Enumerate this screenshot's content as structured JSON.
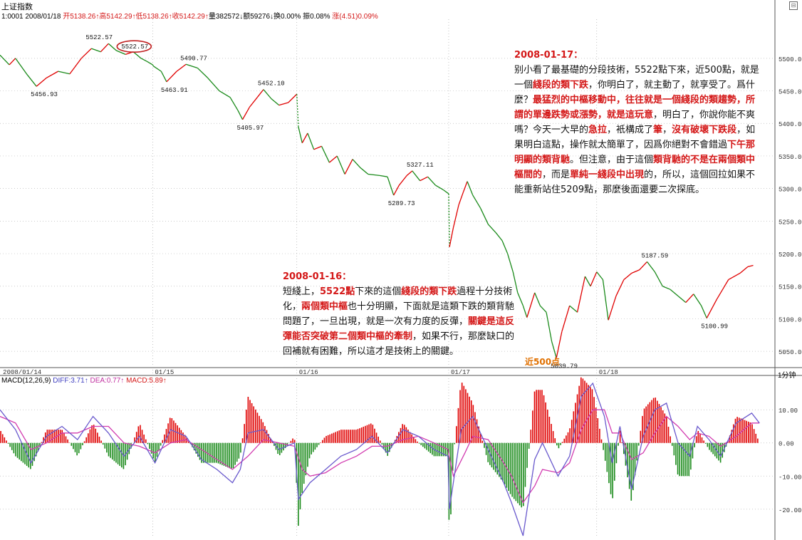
{
  "header": {
    "index_name": "上证指数",
    "code_date": "1:0001 2008/01/18",
    "open": "开5138.26↑",
    "high": "高5142.29↑",
    "low": "低5138.26↑",
    "close": "收5142.29↑",
    "volume": "量382572↓",
    "amount": "额59276↓",
    "turnover": "换0.00%",
    "amplitude": "振0.08%",
    "change": "涨(4.51)0.09%",
    "period": "1分钟"
  },
  "macd_header": {
    "name": "MACD(12,26,9)",
    "diff": "DIFF:3.71↑",
    "dea": "DEA:0.77↑",
    "macd": "MACD:5.89↑"
  },
  "colors": {
    "up": "#e00000",
    "down": "#1a8a1a",
    "diff_line": "#6a5acd",
    "dea_line": "#d23cb0",
    "note_red": "#d41818",
    "axis": "#888888"
  },
  "notes": {
    "n1": {
      "date": "2008-01-17：",
      "segments": [
        {
          "t": " 别小看了最基礎的分段技術，5522點下來，近500點，就是一個",
          "h": false
        },
        {
          "t": "綫段的類下跌",
          "h": true
        },
        {
          "t": "，你明白了，就主動了，就享受了。爲什麼？",
          "h": false
        },
        {
          "t": "最猛烈的中樞移動中，往往就是一個綫段的類趨勢，所謂的單邊跌勢或漲勢，就是這玩意",
          "h": true
        },
        {
          "t": "，明白了，你說你能不爽嗎？今天一大早的",
          "h": false
        },
        {
          "t": "急拉",
          "h": true
        },
        {
          "t": "，衹構成了",
          "h": false
        },
        {
          "t": "筆",
          "h": true
        },
        {
          "t": "，",
          "h": false
        },
        {
          "t": "沒有破壞下跌段",
          "h": true
        },
        {
          "t": "，如果明白這點，操作就太簡單了，因爲你絕對不會錯過",
          "h": false
        },
        {
          "t": "下午那明顯的類背馳",
          "h": true
        },
        {
          "t": "。但注意，由于這個",
          "h": false
        },
        {
          "t": "類背馳的不是在兩個類中樞間的",
          "h": true
        },
        {
          "t": "，而是",
          "h": false
        },
        {
          "t": "單純一綫段中出現",
          "h": true
        },
        {
          "t": "的，所以，這個回拉如果不能重新站住5209點，那麼後面還要二次探底。",
          "h": false
        }
      ]
    },
    "n2": {
      "date": "2008-01-16：",
      "segments": [
        {
          "t": "短綫上，",
          "h": false
        },
        {
          "t": "5522點",
          "h": true
        },
        {
          "t": "下來的這個",
          "h": false
        },
        {
          "t": "綫段的類下跌",
          "h": true
        },
        {
          "t": "過程十分技術化，",
          "h": false
        },
        {
          "t": "兩個類中樞",
          "h": true
        },
        {
          "t": "也十分明顯，下面就是這類下跌的類背馳問題了，一旦出現，就是一次有力度的反彈，",
          "h": false
        },
        {
          "t": "關鍵是這反彈能否突破第二個類中樞的牽制",
          "h": true
        },
        {
          "t": "，如果不行，那麼缺口的回補就有困難，所以這才是技術上的關鍵。",
          "h": false
        }
      ]
    },
    "near500": "近500点"
  },
  "chart_data": [
    {
      "type": "line",
      "name": "上证指数 1分钟",
      "x_labels": [
        "2008/01/14",
        "01/15",
        "01/16",
        "01/17",
        "01/18"
      ],
      "ylim": [
        5025,
        5560
      ],
      "y_ticks": [
        5050,
        5100,
        5150,
        5200,
        5250,
        5300,
        5350,
        5400,
        5450,
        5500
      ],
      "y_tick_labels": [
        "5050.0",
        "5100.0",
        "5150.0",
        "5200.0",
        "5250.0",
        "5300.0",
        "5350.0",
        "5400.0",
        "5450.0",
        "5500.0"
      ],
      "grid": true,
      "day_boundaries": [
        0.197,
        0.383,
        0.579,
        0.77
      ],
      "price_points": [
        [
          0,
          5505
        ],
        [
          0.012,
          5490
        ],
        [
          0.02,
          5500
        ],
        [
          0.035,
          5475
        ],
        [
          0.047,
          5456.93
        ],
        [
          0.06,
          5470
        ],
        [
          0.075,
          5480
        ],
        [
          0.09,
          5476
        ],
        [
          0.105,
          5500
        ],
        [
          0.118,
          5515
        ],
        [
          0.13,
          5510
        ],
        [
          0.14,
          5522.57
        ],
        [
          0.15,
          5512
        ],
        [
          0.162,
          5506
        ],
        [
          0.172,
          5510
        ],
        [
          0.182,
          5500
        ],
        [
          0.19,
          5495
        ],
        [
          0.197,
          5490
        ],
        [
          0.198,
          5488
        ],
        [
          0.208,
          5480
        ],
        [
          0.215,
          5463.91
        ],
        [
          0.228,
          5480
        ],
        [
          0.24,
          5490.77
        ],
        [
          0.255,
          5485
        ],
        [
          0.268,
          5470
        ],
        [
          0.283,
          5450
        ],
        [
          0.297,
          5440
        ],
        [
          0.307,
          5420
        ],
        [
          0.313,
          5405.97
        ],
        [
          0.322,
          5425
        ],
        [
          0.332,
          5440
        ],
        [
          0.34,
          5452.1
        ],
        [
          0.35,
          5438
        ],
        [
          0.36,
          5428
        ],
        [
          0.372,
          5432
        ],
        [
          0.383,
          5445
        ],
        [
          0.385,
          5395
        ],
        [
          0.39,
          5370
        ],
        [
          0.397,
          5385
        ],
        [
          0.405,
          5360
        ],
        [
          0.415,
          5365
        ],
        [
          0.425,
          5340
        ],
        [
          0.435,
          5350
        ],
        [
          0.445,
          5322
        ],
        [
          0.455,
          5345
        ],
        [
          0.465,
          5332
        ],
        [
          0.475,
          5322
        ],
        [
          0.49,
          5320
        ],
        [
          0.5,
          5318
        ],
        [
          0.508,
          5289.73
        ],
        [
          0.515,
          5305
        ],
        [
          0.525,
          5320
        ],
        [
          0.532,
          5327.11
        ],
        [
          0.542,
          5312
        ],
        [
          0.552,
          5318
        ],
        [
          0.562,
          5305
        ],
        [
          0.572,
          5298
        ],
        [
          0.579,
          5292
        ],
        [
          0.58,
          5210
        ],
        [
          0.585,
          5240
        ],
        [
          0.592,
          5275
        ],
        [
          0.598,
          5295
        ],
        [
          0.603,
          5311
        ],
        [
          0.61,
          5290
        ],
        [
          0.62,
          5270
        ],
        [
          0.63,
          5245
        ],
        [
          0.64,
          5232
        ],
        [
          0.648,
          5220
        ],
        [
          0.655,
          5200
        ],
        [
          0.662,
          5172
        ],
        [
          0.668,
          5140
        ],
        [
          0.675,
          5120
        ],
        [
          0.68,
          5102
        ],
        [
          0.69,
          5140
        ],
        [
          0.697,
          5120
        ],
        [
          0.705,
          5110
        ],
        [
          0.712,
          5065
        ],
        [
          0.718,
          5039.79
        ],
        [
          0.725,
          5080
        ],
        [
          0.735,
          5120
        ],
        [
          0.745,
          5110
        ],
        [
          0.755,
          5165
        ],
        [
          0.762,
          5150
        ],
        [
          0.77,
          5172
        ],
        [
          0.778,
          5160
        ],
        [
          0.785,
          5098
        ],
        [
          0.795,
          5135
        ],
        [
          0.805,
          5160
        ],
        [
          0.815,
          5170
        ],
        [
          0.825,
          5175
        ],
        [
          0.835,
          5187.59
        ],
        [
          0.845,
          5172
        ],
        [
          0.855,
          5150
        ],
        [
          0.865,
          5145
        ],
        [
          0.875,
          5135
        ],
        [
          0.885,
          5125
        ],
        [
          0.895,
          5138
        ],
        [
          0.905,
          5120
        ],
        [
          0.912,
          5100.99
        ],
        [
          0.925,
          5130
        ],
        [
          0.94,
          5160
        ],
        [
          0.955,
          5170
        ],
        [
          0.965,
          5180
        ],
        [
          0.972,
          5182
        ]
      ],
      "annotations": [
        {
          "label": "5522.57",
          "x": 0.14,
          "y": 5522.57,
          "circled": true
        },
        {
          "label": "5522.57",
          "x": 0.118,
          "y": 5522.57
        },
        {
          "label": "5456.93",
          "x": 0.047,
          "y": 5456.93
        },
        {
          "label": "5490.77",
          "x": 0.24,
          "y": 5490.77
        },
        {
          "label": "5463.91",
          "x": 0.215,
          "y": 5463.91
        },
        {
          "label": "5452.10",
          "x": 0.34,
          "y": 5452.1
        },
        {
          "label": "5405.97",
          "x": 0.313,
          "y": 5405.97
        },
        {
          "label": "5327.11",
          "x": 0.532,
          "y": 5327.11
        },
        {
          "label": "5289.73",
          "x": 0.508,
          "y": 5289.73
        },
        {
          "label": "5039.79",
          "x": 0.718,
          "y": 5039.79
        },
        {
          "label": "5187.59",
          "x": 0.835,
          "y": 5187.59
        },
        {
          "label": "5100.99",
          "x": 0.912,
          "y": 5100.99
        }
      ]
    },
    {
      "type": "bar",
      "name": "MACD(12,26,9)",
      "ylim": [
        -28,
        18
      ],
      "y_ticks": [
        10,
        0,
        -10,
        -20
      ],
      "y_tick_labels": [
        "10.00",
        "0.00",
        "-10.00",
        "-20.00"
      ],
      "series": [
        {
          "name": "DIFF",
          "points": [
            [
              0,
              10
            ],
            [
              0.02,
              4
            ],
            [
              0.04,
              -6
            ],
            [
              0.06,
              2
            ],
            [
              0.08,
              5
            ],
            [
              0.1,
              1
            ],
            [
              0.12,
              8
            ],
            [
              0.14,
              3
            ],
            [
              0.16,
              -4
            ],
            [
              0.18,
              2
            ],
            [
              0.2,
              -6
            ],
            [
              0.22,
              4
            ],
            [
              0.24,
              2
            ],
            [
              0.26,
              -5
            ],
            [
              0.28,
              -8
            ],
            [
              0.3,
              -12
            ],
            [
              0.31,
              -8
            ],
            [
              0.32,
              3
            ],
            [
              0.34,
              4
            ],
            [
              0.36,
              -2
            ],
            [
              0.38,
              0
            ],
            [
              0.385,
              -17
            ],
            [
              0.4,
              -12
            ],
            [
              0.42,
              -8
            ],
            [
              0.44,
              -4
            ],
            [
              0.46,
              -2
            ],
            [
              0.48,
              2
            ],
            [
              0.5,
              -3
            ],
            [
              0.52,
              4
            ],
            [
              0.54,
              2
            ],
            [
              0.56,
              -2
            ],
            [
              0.578,
              -4
            ],
            [
              0.58,
              -20
            ],
            [
              0.595,
              4
            ],
            [
              0.61,
              8
            ],
            [
              0.63,
              -2
            ],
            [
              0.65,
              -12
            ],
            [
              0.66,
              -18
            ],
            [
              0.675,
              -28
            ],
            [
              0.69,
              -5
            ],
            [
              0.7,
              0
            ],
            [
              0.72,
              -10
            ],
            [
              0.735,
              -4
            ],
            [
              0.75,
              14
            ],
            [
              0.765,
              18
            ],
            [
              0.78,
              8
            ],
            [
              0.79,
              -6
            ],
            [
              0.8,
              5
            ],
            [
              0.815,
              -14
            ],
            [
              0.83,
              2
            ],
            [
              0.845,
              10
            ],
            [
              0.86,
              12
            ],
            [
              0.875,
              0
            ],
            [
              0.89,
              -4
            ],
            [
              0.9,
              5
            ],
            [
              0.915,
              1
            ],
            [
              0.93,
              -4
            ],
            [
              0.95,
              6
            ],
            [
              0.97,
              9
            ],
            [
              0.98,
              6
            ]
          ]
        },
        {
          "name": "DEA",
          "points": [
            [
              0,
              8
            ],
            [
              0.02,
              6
            ],
            [
              0.04,
              -2
            ],
            [
              0.06,
              0
            ],
            [
              0.08,
              3
            ],
            [
              0.1,
              3
            ],
            [
              0.12,
              5
            ],
            [
              0.14,
              5
            ],
            [
              0.16,
              0
            ],
            [
              0.18,
              -1
            ],
            [
              0.2,
              -3
            ],
            [
              0.22,
              0
            ],
            [
              0.24,
              1
            ],
            [
              0.26,
              -2
            ],
            [
              0.28,
              -5
            ],
            [
              0.3,
              -8
            ],
            [
              0.32,
              -4
            ],
            [
              0.34,
              1
            ],
            [
              0.36,
              0
            ],
            [
              0.38,
              -1
            ],
            [
              0.39,
              -8
            ],
            [
              0.4,
              -10
            ],
            [
              0.42,
              -9
            ],
            [
              0.44,
              -6
            ],
            [
              0.46,
              -4
            ],
            [
              0.48,
              -1
            ],
            [
              0.5,
              -1
            ],
            [
              0.52,
              1
            ],
            [
              0.54,
              2
            ],
            [
              0.56,
              0
            ],
            [
              0.578,
              -2
            ],
            [
              0.585,
              -10
            ],
            [
              0.6,
              -3
            ],
            [
              0.61,
              2
            ],
            [
              0.63,
              1
            ],
            [
              0.65,
              -6
            ],
            [
              0.66,
              -10
            ],
            [
              0.675,
              -18
            ],
            [
              0.69,
              -13
            ],
            [
              0.7,
              -8
            ],
            [
              0.72,
              -9
            ],
            [
              0.735,
              -6
            ],
            [
              0.75,
              4
            ],
            [
              0.765,
              10
            ],
            [
              0.78,
              10
            ],
            [
              0.79,
              3
            ],
            [
              0.8,
              3
            ],
            [
              0.815,
              -5
            ],
            [
              0.83,
              -3
            ],
            [
              0.845,
              3
            ],
            [
              0.86,
              8
            ],
            [
              0.875,
              5
            ],
            [
              0.89,
              1
            ],
            [
              0.9,
              3
            ],
            [
              0.915,
              2
            ],
            [
              0.93,
              -1
            ],
            [
              0.95,
              2
            ],
            [
              0.97,
              6
            ],
            [
              0.98,
              6
            ]
          ]
        }
      ]
    }
  ]
}
